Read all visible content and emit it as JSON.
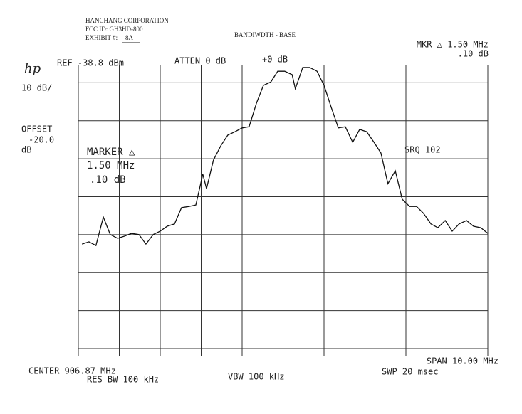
{
  "header": {
    "company": "HANCHANG CORPORATION",
    "fcc_id": "FCC ID: GH3HD-800",
    "exhibit_label": "EXHIBIT #:",
    "exhibit": "8A"
  },
  "chart_data": {
    "type": "line",
    "title": "BANDIWDTH - BASE",
    "annotations": {
      "marker_top": "MKR △ 1.50 MHz",
      "marker_top_db": ".10 dB",
      "logo": "hp",
      "ref": "REF -38.8 dBm",
      "atten": "ATTEN 0 dB",
      "ext": "+0 dB",
      "scale": "10 dB/",
      "offset": "OFFSET",
      "offset_value": "-20.0",
      "offset_unit": "dB",
      "marker": "MARKER △",
      "marker_freq": "1.50 MHz",
      "marker_db": ".10 dB",
      "srq": "SRQ 102",
      "center": "CENTER 906.87 MHz",
      "rbw": "RES BW 100 kHz",
      "vbw": "VBW 100 kHz",
      "span": "SPAN 10.00 MHz",
      "sweep": "SWP 20 msec"
    },
    "xlim": [
      901.87,
      911.87
    ],
    "ylim": [
      -118.8,
      -38.8
    ],
    "color": "#111111",
    "x": [
      901.96,
      902.13,
      902.3,
      902.48,
      902.65,
      902.83,
      903.0,
      903.17,
      903.35,
      903.52,
      903.7,
      903.87,
      904.04,
      904.22,
      904.39,
      904.57,
      904.74,
      904.91,
      905.0,
      905.17,
      905.35,
      905.52,
      905.7,
      905.87,
      906.04,
      906.22,
      906.39,
      906.57,
      906.74,
      906.91,
      907.09,
      907.17,
      907.35,
      907.52,
      907.7,
      907.87,
      908.04,
      908.22,
      908.39,
      908.57,
      908.74,
      908.91,
      909.09,
      909.26,
      909.43,
      909.61,
      909.78,
      909.96,
      910.13,
      910.3,
      910.48,
      910.65,
      910.83,
      911.0,
      911.17,
      911.35,
      911.52,
      911.7,
      911.87
    ],
    "values": [
      -90.9,
      -90.3,
      -91.3,
      -83.8,
      -88.4,
      -89.4,
      -88.8,
      -88.1,
      -88.4,
      -90.9,
      -88.4,
      -87.5,
      -86.2,
      -85.6,
      -81.3,
      -81.0,
      -80.6,
      -72.5,
      -76.3,
      -68.8,
      -65.0,
      -62.2,
      -61.3,
      -60.3,
      -60.0,
      -53.8,
      -49.1,
      -48.2,
      -45.4,
      -45.4,
      -46.3,
      -50.0,
      -44.4,
      -44.4,
      -45.4,
      -49.1,
      -54.7,
      -60.3,
      -60.0,
      -64.1,
      -60.7,
      -61.3,
      -64.1,
      -66.9,
      -75.0,
      -71.6,
      -79.1,
      -81.0,
      -81.0,
      -82.8,
      -85.6,
      -86.6,
      -84.7,
      -87.5,
      -85.6,
      -84.7,
      -86.2,
      -86.6,
      -88.1
    ]
  }
}
